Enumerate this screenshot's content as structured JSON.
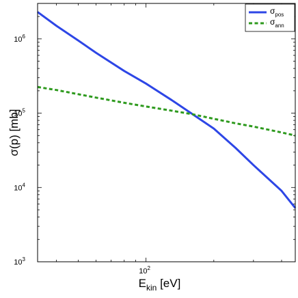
{
  "chart_data": {
    "type": "line",
    "xscale": "log",
    "yscale": "log",
    "xlim": [
      33,
      460
    ],
    "ylim": [
      1000,
      3000000
    ],
    "xlabel": {
      "main": "E",
      "sub": "kin",
      "rest": " [eV]"
    },
    "ylabel": "σ(p) [mb]",
    "xticks": [
      {
        "value": 100,
        "base": "10",
        "exp": "2"
      }
    ],
    "yticks": [
      {
        "value": 1000,
        "base": "10",
        "exp": "3"
      },
      {
        "value": 10000,
        "base": "10",
        "exp": "4"
      },
      {
        "value": 100000,
        "base": "10",
        "exp": "5"
      },
      {
        "value": 1000000,
        "base": "10",
        "exp": "6"
      }
    ],
    "grid": false,
    "legend_position": "top-right",
    "series": [
      {
        "name": "σ",
        "name_sub": "pos",
        "color": "#2d46e6",
        "style": "solid",
        "x": [
          33,
          40,
          50,
          60,
          80,
          100,
          130,
          160,
          200,
          250,
          300,
          400,
          460
        ],
        "y": [
          2300000,
          1500000,
          950000,
          650000,
          370000,
          250000,
          150000,
          98000,
          62000,
          34000,
          20000,
          9000,
          5300
        ]
      },
      {
        "name": "σ",
        "name_sub": "ann",
        "color": "#2e9a1e",
        "style": "dashed",
        "x": [
          33,
          40,
          50,
          60,
          80,
          100,
          130,
          160,
          200,
          250,
          300,
          400,
          460
        ],
        "y": [
          225000,
          205000,
          180000,
          162000,
          138000,
          123000,
          108000,
          97000,
          84000,
          73000,
          66000,
          55000,
          50000
        ]
      }
    ]
  }
}
